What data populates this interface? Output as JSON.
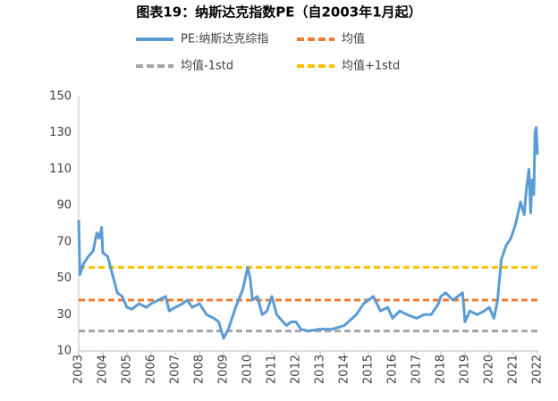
{
  "chart_data": {
    "type": "line",
    "title": "图表19：纳斯达克指数PE（自2003年1月起）",
    "xlim": [
      2003,
      2022
    ],
    "xticks": [
      2003,
      2004,
      2005,
      2006,
      2007,
      2008,
      2009,
      2010,
      2011,
      2012,
      2013,
      2014,
      2015,
      2016,
      2017,
      2018,
      2019,
      2020,
      2021,
      2022
    ],
    "ylim": [
      10,
      150
    ],
    "yticks": [
      10,
      30,
      50,
      70,
      90,
      110,
      130,
      150
    ],
    "grid": false,
    "series": [
      {
        "name": "PE:纳斯达克综指",
        "color": "#5b9bd5",
        "dashed": false,
        "x": [
          2003,
          2003.05,
          2003.2,
          2003.4,
          2003.6,
          2003.75,
          2003.85,
          2003.95,
          2004.0,
          2004.2,
          2004.4,
          2004.6,
          2004.8,
          2005.0,
          2005.2,
          2005.5,
          2005.8,
          2006.0,
          2006.3,
          2006.6,
          2006.75,
          2007.0,
          2007.3,
          2007.5,
          2007.7,
          2008.0,
          2008.3,
          2008.6,
          2008.8,
          2009.0,
          2009.2,
          2009.5,
          2009.8,
          2010.0,
          2010.1,
          2010.2,
          2010.4,
          2010.6,
          2010.8,
          2011.0,
          2011.2,
          2011.6,
          2011.8,
          2012.0,
          2012.2,
          2012.5,
          2013.0,
          2013.5,
          2014.0,
          2014.5,
          2014.8,
          2015.0,
          2015.2,
          2015.5,
          2015.8,
          2016.0,
          2016.3,
          2016.6,
          2017.0,
          2017.3,
          2017.6,
          2017.9,
          2018.0,
          2018.2,
          2018.5,
          2018.7,
          2018.9,
          2019.0,
          2019.2,
          2019.5,
          2019.8,
          2020.0,
          2020.2,
          2020.35,
          2020.5,
          2020.7,
          2020.9,
          2021.1,
          2021.3,
          2021.45,
          2021.55,
          2021.65,
          2021.72,
          2021.78,
          2021.85,
          2021.9,
          2021.95,
          2022.0
        ],
        "values": [
          82,
          52,
          58,
          62,
          65,
          75,
          72,
          78,
          64,
          62,
          52,
          42,
          40,
          34,
          33,
          36,
          34,
          36,
          38,
          40,
          32,
          34,
          36,
          38,
          34,
          36,
          30,
          28,
          26,
          17,
          22,
          34,
          44,
          56,
          50,
          38,
          40,
          30,
          32,
          40,
          30,
          24,
          26,
          26,
          22,
          21,
          22,
          22,
          24,
          30,
          36,
          38,
          40,
          32,
          34,
          28,
          32,
          30,
          28,
          30,
          30,
          36,
          40,
          42,
          38,
          40,
          42,
          26,
          32,
          30,
          32,
          34,
          28,
          38,
          60,
          68,
          72,
          80,
          92,
          85,
          100,
          110,
          86,
          104,
          96,
          130,
          133,
          118
        ]
      },
      {
        "name": "均值",
        "color": "#ed7d31",
        "dashed": true,
        "x": [
          2003,
          2022
        ],
        "values": [
          38,
          38
        ]
      },
      {
        "name": "均值-1std",
        "color": "#a5a5a5",
        "dashed": true,
        "x": [
          2003,
          2022
        ],
        "values": [
          21,
          21
        ]
      },
      {
        "name": "均值+1std",
        "color": "#ffc000",
        "dashed": true,
        "x": [
          2003,
          2022
        ],
        "values": [
          56,
          56
        ]
      }
    ]
  }
}
